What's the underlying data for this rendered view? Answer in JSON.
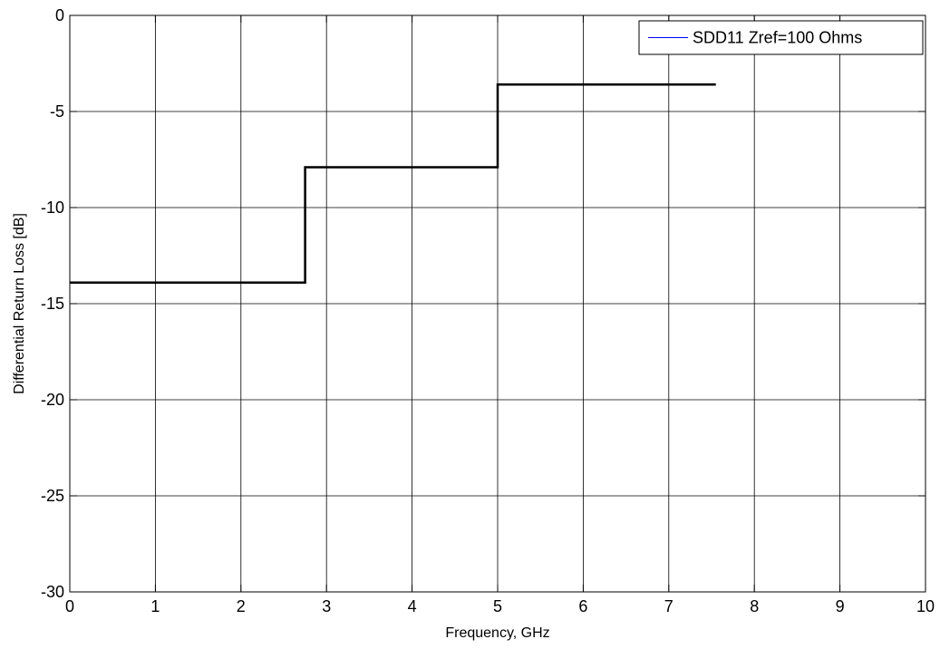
{
  "chart_data": {
    "type": "line",
    "title": "",
    "xlabel": "Frequency, GHz",
    "ylabel": "Differential Return Loss [dB]",
    "xlim": [
      0,
      10
    ],
    "ylim": [
      -30,
      0
    ],
    "xticks": [
      0,
      1,
      2,
      3,
      4,
      5,
      6,
      7,
      8,
      9,
      10
    ],
    "yticks": [
      0,
      -5,
      -10,
      -15,
      -20,
      -25,
      -30
    ],
    "grid": true,
    "legend_position": "top-right",
    "legend": [
      {
        "label": "SDD11 Zref=100 Ohms",
        "color": "#0000ff"
      }
    ],
    "series": [
      {
        "color": "#000000",
        "x": [
          0,
          2.75,
          2.75,
          5.0,
          5.0,
          7.55
        ],
        "y": [
          -13.9,
          -13.9,
          -7.9,
          -7.9,
          -3.6,
          -3.6
        ]
      }
    ]
  }
}
